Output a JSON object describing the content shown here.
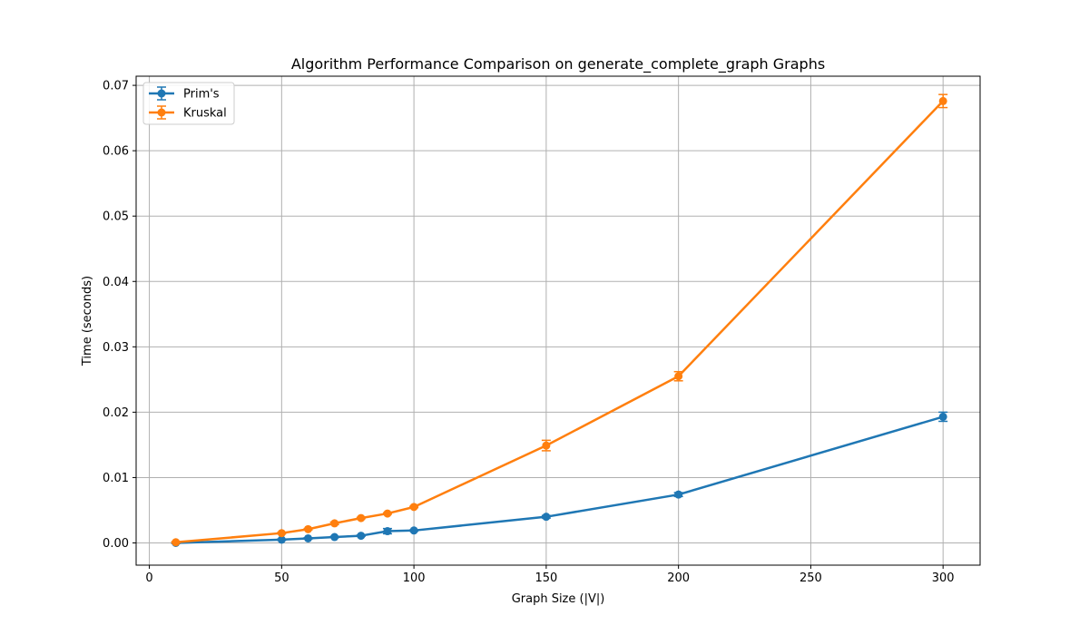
{
  "chart_data": {
    "type": "line",
    "title": "Algorithm Performance Comparison on generate_complete_graph Graphs",
    "xlabel": "Graph Size (|V|)",
    "ylabel": "Time (seconds)",
    "xlim": [
      -5,
      314
    ],
    "ylim": [
      -0.0034,
      0.0714
    ],
    "xticks": [
      0,
      50,
      100,
      150,
      200,
      250,
      300
    ],
    "xtick_labels": [
      "0",
      "50",
      "100",
      "150",
      "200",
      "250",
      "300"
    ],
    "yticks": [
      0.0,
      0.01,
      0.02,
      0.03,
      0.04,
      0.05,
      0.06,
      0.07
    ],
    "ytick_labels": [
      "0.00",
      "0.01",
      "0.02",
      "0.03",
      "0.04",
      "0.05",
      "0.06",
      "0.07"
    ],
    "grid": true,
    "legend_position": "top-left",
    "x": [
      10,
      50,
      60,
      70,
      80,
      90,
      100,
      150,
      200,
      300
    ],
    "series": [
      {
        "name": "Prim's",
        "color": "#1f77b4",
        "values": [
          0.0,
          0.0005,
          0.0007,
          0.0009,
          0.0011,
          0.0018,
          0.0019,
          0.004,
          0.0074,
          0.0193
        ],
        "errors": [
          0.0001,
          0.0001,
          0.0001,
          0.0001,
          0.0001,
          0.0004,
          0.0001,
          0.0002,
          0.0003,
          0.0007
        ]
      },
      {
        "name": "Kruskal",
        "color": "#ff7f0e",
        "values": [
          0.0001,
          0.0015,
          0.0021,
          0.003,
          0.0038,
          0.0045,
          0.0055,
          0.0149,
          0.0255,
          0.0676
        ],
        "errors": [
          0.0001,
          0.0001,
          0.0001,
          0.0002,
          0.0001,
          0.0001,
          0.0001,
          0.0008,
          0.0007,
          0.001
        ]
      }
    ]
  }
}
